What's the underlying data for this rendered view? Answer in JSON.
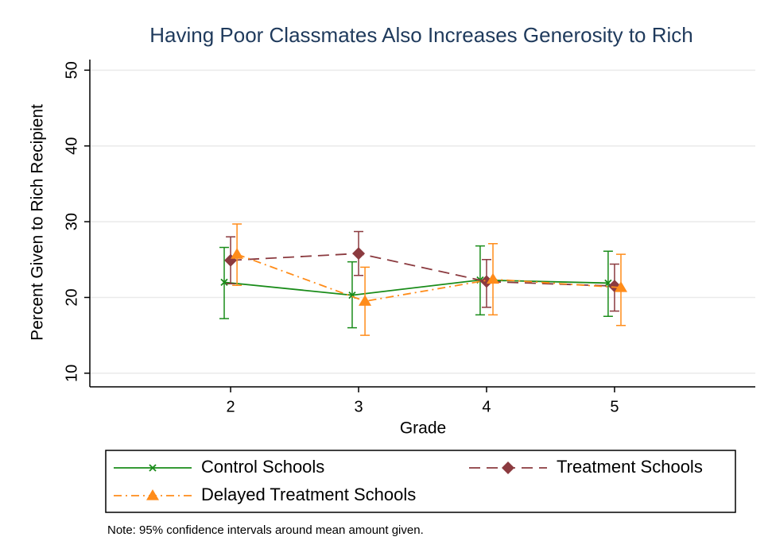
{
  "chart_data": {
    "type": "line",
    "title": "Having Poor Classmates Also Increases Generosity to Rich",
    "x_label": "Grade",
    "y_label": "Percent Given to Rich Recipient",
    "note": "Note: 95% confidence intervals around mean amount given.",
    "xlim": [
      0.9,
      6.1
    ],
    "ylim": [
      8.2,
      51.4
    ],
    "xticks": [
      2,
      3,
      4,
      5
    ],
    "yticks": [
      10,
      20,
      30,
      40,
      50
    ],
    "grid": true,
    "series": [
      {
        "name": "Control Schools",
        "color": "#1a8c1a",
        "marker": "x",
        "line_style": "solid",
        "x": [
          1.95,
          2.95,
          3.95,
          4.95
        ],
        "values": [
          22.0,
          20.3,
          22.3,
          21.9
        ],
        "lower": [
          17.2,
          16.0,
          17.7,
          17.5
        ],
        "upper": [
          26.6,
          24.7,
          26.8,
          26.1
        ]
      },
      {
        "name": "Treatment Schools",
        "color": "#8b3a3f",
        "marker": "diamond",
        "line_style": "dash",
        "x": [
          2,
          3,
          4,
          5
        ],
        "values": [
          24.9,
          25.8,
          22.1,
          21.5
        ],
        "lower": [
          21.8,
          22.9,
          18.7,
          18.2
        ],
        "upper": [
          28.0,
          28.7,
          25.0,
          24.4
        ]
      },
      {
        "name": "Delayed Treatment Schools",
        "color": "#ff8c1a",
        "marker": "triangle",
        "line_style": "dashdot",
        "x": [
          2.05,
          3.05,
          4.05,
          5.05
        ],
        "values": [
          25.7,
          19.5,
          22.4,
          21.3
        ],
        "lower": [
          21.6,
          15.0,
          17.7,
          16.3
        ],
        "upper": [
          29.7,
          24.0,
          27.1,
          25.7
        ]
      }
    ]
  }
}
